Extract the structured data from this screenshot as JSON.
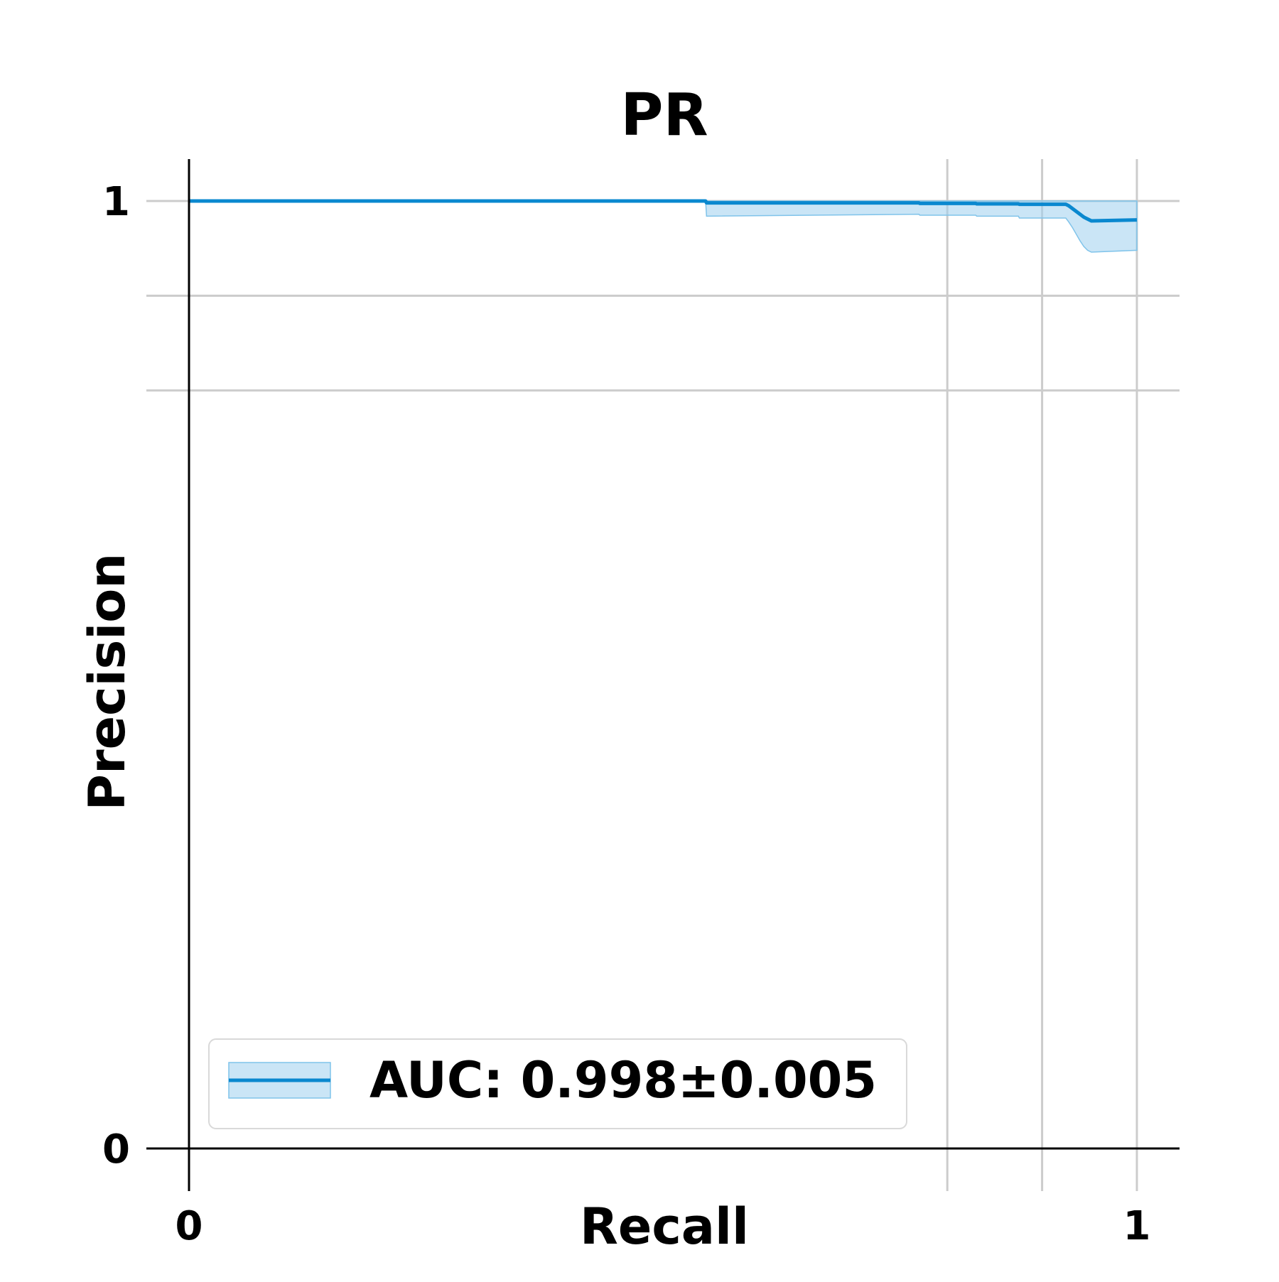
{
  "chart_data": {
    "type": "line",
    "title": "PR",
    "xlabel": "Recall",
    "ylabel": "Precision",
    "xlim": [
      0,
      1
    ],
    "ylim": [
      0,
      1
    ],
    "x_ticks": [
      {
        "value": 0,
        "label": "0"
      },
      {
        "value": 1,
        "label": "1"
      }
    ],
    "y_ticks": [
      {
        "value": 0,
        "label": "0"
      },
      {
        "value": 1,
        "label": "1"
      }
    ],
    "grid": {
      "x_lines": [
        0.8,
        0.9,
        1.0
      ],
      "y_lines": [
        0.8,
        0.9,
        1.0
      ]
    },
    "legend": {
      "placement": "lower-left",
      "entries": [
        "AUC: 0.998±0.005"
      ]
    },
    "colors": {
      "line": "#0a88cf",
      "band": "#9fd0ee",
      "band_edge": "#7fc3ea"
    },
    "series": [
      {
        "name": "AUC: 0.998±0.005",
        "x": [
          0,
          0.545,
          0.546,
          0.77,
          0.771,
          0.83,
          0.831,
          0.875,
          0.876,
          0.925,
          0.928,
          0.932,
          0.936,
          0.94,
          0.944,
          0.948,
          0.952,
          1.0
        ],
        "y": [
          1.0,
          1.0,
          0.998,
          0.998,
          0.9975,
          0.9975,
          0.997,
          0.997,
          0.9965,
          0.9965,
          0.995,
          0.992,
          0.989,
          0.986,
          0.983,
          0.981,
          0.979,
          0.98
        ],
        "band": {
          "x": [
            0,
            0.545,
            0.546,
            0.77,
            0.771,
            0.83,
            0.831,
            0.875,
            0.876,
            0.925,
            0.928,
            0.932,
            0.936,
            0.94,
            0.944,
            0.948,
            0.952,
            1.0
          ],
          "upper": [
            1.0,
            1.0,
            1.0,
            1.0,
            1.0,
            1.0,
            1.0,
            1.0,
            1.0,
            1.0,
            1.0,
            1.0,
            1.0,
            1.0,
            1.0,
            1.0,
            1.0,
            1.0
          ],
          "lower": [
            1.0,
            1.0,
            0.984,
            0.986,
            0.985,
            0.985,
            0.984,
            0.984,
            0.982,
            0.982,
            0.978,
            0.972,
            0.965,
            0.958,
            0.952,
            0.948,
            0.946,
            0.948
          ]
        }
      }
    ]
  }
}
